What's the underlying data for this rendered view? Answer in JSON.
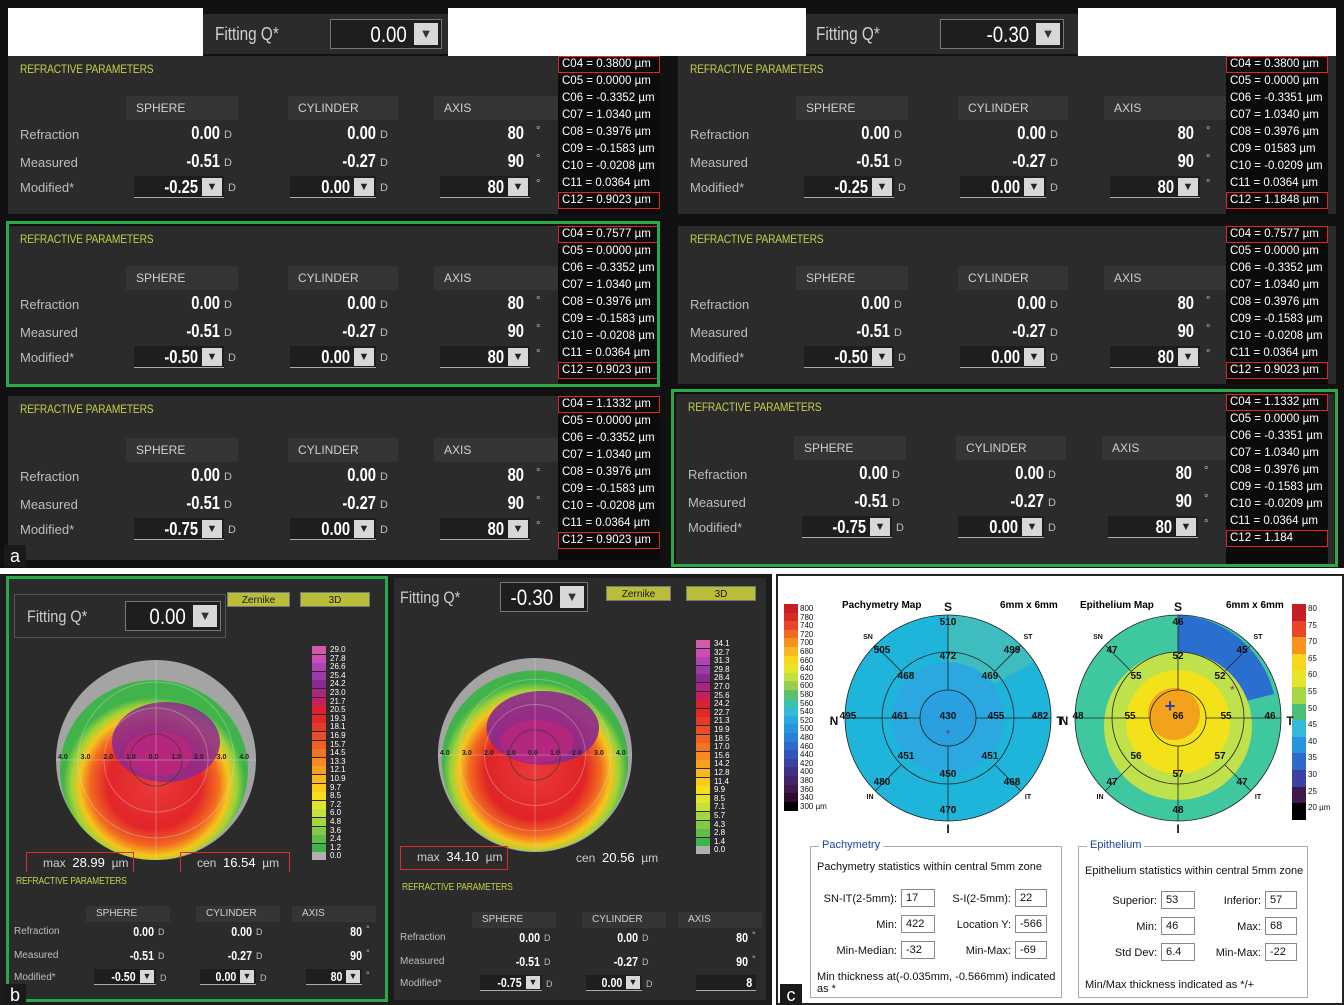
{
  "panel_letters": {
    "a": "a",
    "b": "b",
    "c": "c"
  },
  "fitting": {
    "label": "Fitting Q*",
    "left_value": "0.00",
    "right_value": "-0.30"
  },
  "arrow": "▼",
  "refractive": {
    "title": "REFRACTIVE PARAMETERS",
    "headers": {
      "sphere": "SPHERE",
      "cylinder": "CYLINDER",
      "axis": "AXIS"
    },
    "rows": {
      "refraction": "Refraction",
      "measured": "Measured",
      "modified": "Modified*"
    },
    "units": {
      "d": "D",
      "deg": "°"
    },
    "refraction": {
      "sphere": "0.00",
      "cylinder": "0.00",
      "axis": "80"
    },
    "measured": {
      "sphere": "-0.51",
      "cylinder": "-0.27",
      "axis": "90"
    },
    "modified_cylinder": "0.00",
    "modified_axis": "80",
    "modified_sphere": [
      "-0.25",
      "-0.50",
      "-0.75"
    ]
  },
  "coefficients": {
    "l1": [
      "C04 = 0.3800 µm",
      "C05 = 0.0000 µm",
      "C06 = -0.3352 µm",
      "C07 = 1.0340 µm",
      "C08 = 0.3976 µm",
      "C09 = -0.1583 µm",
      "C10 = -0.0208 µm",
      "C11 = 0.0364 µm",
      "C12 = 0.9023 µm"
    ],
    "r1": [
      "C04 = 0.3800 µm",
      "C05 = 0.0000 µm",
      "C06 = -0.3351 µm",
      "C07 = 1.0340 µm",
      "C08 = 0.3976 µm",
      "C09 = 01583 µm",
      "C10 = -0.0209 µm",
      "C11 = 0.0364 µm",
      "C12 = 1.1848 µm"
    ],
    "l2": [
      "C04 = 0.7577 µm",
      "C05 = 0.0000 µm",
      "C06 = -0.3352 µm",
      "C07 = 1.0340 µm",
      "C08 = 0.3976 µm",
      "C09 = -0.1583 µm",
      "C10 = -0.0208 µm",
      "C11 = 0.0364 µm",
      "C12 = 0.9023 µm"
    ],
    "r2": [
      "C04 = 0.7577 µm",
      "C05 = 0.0000 µm",
      "C06 = -0.3352 µm",
      "C07 = 1.0340 µm",
      "C08 = 0.3976 µm",
      "C09 = -0.1583 µm",
      "C10 = -0.0208 µm",
      "C11 = 0.0364 µm",
      "C12 = 0.9023 µm"
    ],
    "l3": [
      "C04 = 1.1332 µm",
      "C05 = 0.0000 µm",
      "C06 = -0.3352 µm",
      "C07 = 1.0340 µm",
      "C08 = 0.3976 µm",
      "C09 = -0.1583 µm",
      "C10 = -0.0208 µm",
      "C11 = 0.0364 µm",
      "C12 = 0.9023 µm"
    ],
    "r3": [
      "C04 = 1.1332 µm",
      "C05 = 0.0000 µm",
      "C06 = -0.3351 µm",
      "C07 = 1.0340 µm",
      "C08 = 0.3976 µm",
      "C09 = -0.1583 µm",
      "C10 = -0.0209 µm",
      "C11 = 0.0364 µm",
      "C12 = 1.184"
    ]
  },
  "maps_b": {
    "zernike": "Zernike",
    "three_d": "3D",
    "left": {
      "max_label": "max",
      "max": "28.99",
      "cen_label": "cen",
      "cen": "16.54",
      "unit": "µm",
      "scale": [
        "29.0",
        "27.8",
        "26.6",
        "25.4",
        "24.2",
        "23.0",
        "21.7",
        "20.5",
        "19.3",
        "18.1",
        "16.9",
        "15.7",
        "14.5",
        "13.3",
        "12.1",
        "10.9",
        "9.7",
        "8.5",
        "7.2",
        "6.0",
        "4.8",
        "3.6",
        "2.4",
        "1.2",
        "0.0"
      ],
      "ticks": [
        "4.0",
        "3.0",
        "2.0",
        "1.0",
        "0.0",
        "1.0",
        "2.0",
        "3.0",
        "4.0"
      ]
    },
    "right": {
      "max_label": "max",
      "max": "34.10",
      "cen_label": "cen",
      "cen": "20.56",
      "unit": "µm",
      "scale": [
        "34.1",
        "32.7",
        "31.3",
        "29.8",
        "28.4",
        "27.0",
        "25.6",
        "24.2",
        "22.7",
        "21.3",
        "19.9",
        "18.5",
        "17.0",
        "15.6",
        "14.2",
        "12.8",
        "11.4",
        "9.9",
        "8.5",
        "7.1",
        "5.7",
        "4.3",
        "2.8",
        "1.4",
        "0.0"
      ],
      "ticks": [
        "4.0",
        "3.0",
        "2.0",
        "1.0",
        "0.0",
        "1.0",
        "2.0",
        "3.0",
        "4.0"
      ]
    },
    "right_axis_partial": "8"
  },
  "maps_c": {
    "pachy": {
      "title": "Pachymetry Map",
      "size": "6mm x 6mm",
      "S": "S",
      "I": "I",
      "N": "N",
      "T": "T",
      "SN": "SN",
      "ST": "ST",
      "IN": "IN",
      "IT": "IT",
      "values": {
        "s": "510",
        "sn": "505",
        "st": "499",
        "in": "480",
        "it": "468",
        "i": "470",
        "n": "495",
        "t": "482",
        "c": "430",
        "s1": "472",
        "sn1": "468",
        "st1": "469",
        "n1": "461",
        "t1": "455",
        "in1": "451",
        "it1": "451",
        "i1": "450"
      },
      "scale": [
        "800",
        "780",
        "740",
        "720",
        "700",
        "680",
        "660",
        "640",
        "620",
        "600",
        "580",
        "560",
        "540",
        "520",
        "500",
        "480",
        "460",
        "440",
        "420",
        "400",
        "380",
        "360",
        "340",
        "300 µm"
      ]
    },
    "epi": {
      "title": "Epithelium Map",
      "size": "6mm x 6mm",
      "S": "S",
      "I": "I",
      "N": "N",
      "T": "T",
      "SN": "SN",
      "ST": "ST",
      "IN": "IN",
      "IT": "IT",
      "values": {
        "s": "46",
        "sn": "47",
        "st": "45",
        "in": "47",
        "it": "47",
        "i": "48",
        "n": "48",
        "t": "46",
        "c": "66",
        "s1": "52",
        "sn1": "55",
        "st1": "52",
        "n1": "55",
        "t1": "55",
        "in1": "56",
        "it1": "57",
        "i1": "57"
      },
      "scale": [
        "80",
        "75",
        "70",
        "65",
        "60",
        "55",
        "50",
        "45",
        "40",
        "35",
        "30",
        "25",
        "20 µm"
      ]
    },
    "pachy_stats": {
      "legend": "Pachymetry",
      "heading": "Pachymetry statistics within central 5mm zone",
      "sn_it_label": "SN-IT(2-5mm):",
      "sn_it": "17",
      "s_i_label": "S-I(2-5mm):",
      "s_i": "22",
      "min_label": "Min:",
      "min": "422",
      "loc_y_label": "Location Y:",
      "loc_y": "-566",
      "min_median_label": "Min-Median:",
      "min_median": "-32",
      "min_max_label": "Min-Max:",
      "min_max": "-69",
      "note": "Min thickness at(-0.035mm, -0.566mm) indicated as *"
    },
    "epi_stats": {
      "legend": "Epithelium",
      "heading": "Epithelium statistics within central 5mm zone",
      "superior_label": "Superior:",
      "superior": "53",
      "inferior_label": "Inferior:",
      "inferior": "57",
      "min_label": "Min:",
      "min": "46",
      "max_label": "Max:",
      "max": "68",
      "std_label": "Std Dev:",
      "std": "6.4",
      "min_max_label": "Min-Max:",
      "min_max": "-22",
      "note": "Min/Max thickness indicated as */+"
    }
  },
  "colors": {
    "accent": "#c7cf4a",
    "highlight_red": "#d82a2f",
    "green_frame": "#2ba84a",
    "panel": "#2b2b2b"
  }
}
